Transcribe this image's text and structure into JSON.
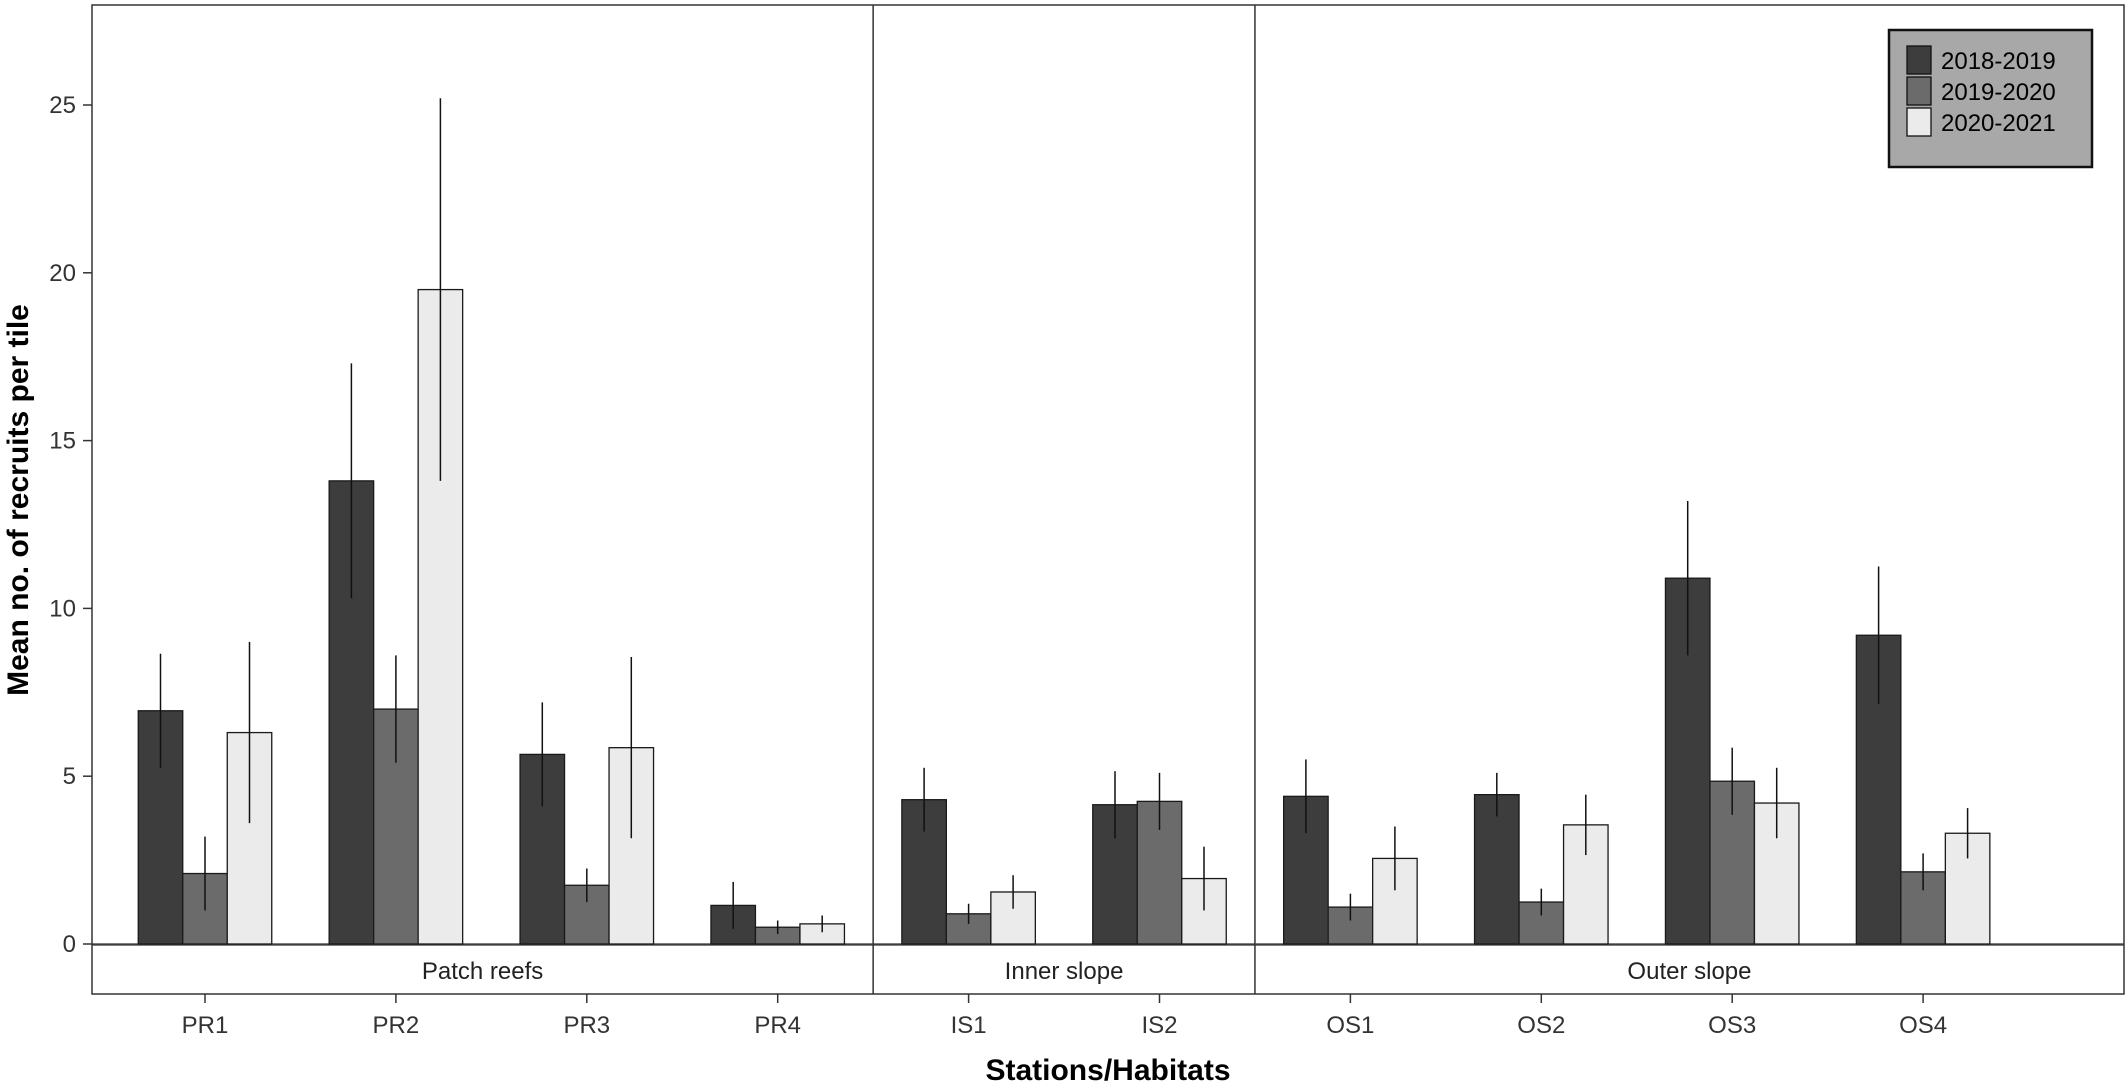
{
  "chart_data": {
    "type": "bar",
    "xlabel": "Stations/Habitats",
    "ylabel": "Mean no. of recruits per tile",
    "ylim": [
      -1.5,
      28
    ],
    "yticks": [
      0,
      5,
      10,
      15,
      20,
      25
    ],
    "grid": false,
    "legend_position": "top-right",
    "categories": [
      "PR1",
      "PR2",
      "PR3",
      "PR4",
      "IS1",
      "IS2",
      "OS1",
      "OS2",
      "OS3",
      "OS4"
    ],
    "habitats": [
      {
        "name": "Patch reefs",
        "stations": [
          "PR1",
          "PR2",
          "PR3",
          "PR4"
        ]
      },
      {
        "name": "Inner slope",
        "stations": [
          "IS1",
          "IS2"
        ]
      },
      {
        "name": "Outer slope",
        "stations": [
          "OS1",
          "OS2",
          "OS3",
          "OS4"
        ]
      }
    ],
    "series": [
      {
        "name": "2018-2019",
        "color": "#3d3d3d",
        "values": [
          6.95,
          13.8,
          5.65,
          1.15,
          4.3,
          4.15,
          4.4,
          4.45,
          10.9,
          9.2
        ],
        "errors": [
          1.7,
          3.5,
          1.55,
          0.7,
          0.95,
          1.0,
          1.1,
          0.65,
          2.3,
          2.05
        ]
      },
      {
        "name": "2019-2020",
        "color": "#6b6b6b",
        "values": [
          2.1,
          7.0,
          1.75,
          0.5,
          0.9,
          4.25,
          1.1,
          1.25,
          4.85,
          2.15
        ],
        "errors": [
          1.1,
          1.6,
          0.5,
          0.2,
          0.3,
          0.85,
          0.4,
          0.4,
          1.0,
          0.55
        ]
      },
      {
        "name": "2020-2021",
        "color": "#ebebeb",
        "values": [
          6.3,
          19.5,
          5.85,
          0.6,
          1.55,
          1.95,
          2.55,
          3.55,
          4.2,
          3.3
        ],
        "errors": [
          2.7,
          5.7,
          2.7,
          0.25,
          0.5,
          0.95,
          0.95,
          0.9,
          1.05,
          0.75
        ]
      }
    ]
  },
  "colors": {
    "frame": "#333333",
    "legend_background": "#a8a8a8",
    "bar_outline": "#1a1a1a"
  }
}
